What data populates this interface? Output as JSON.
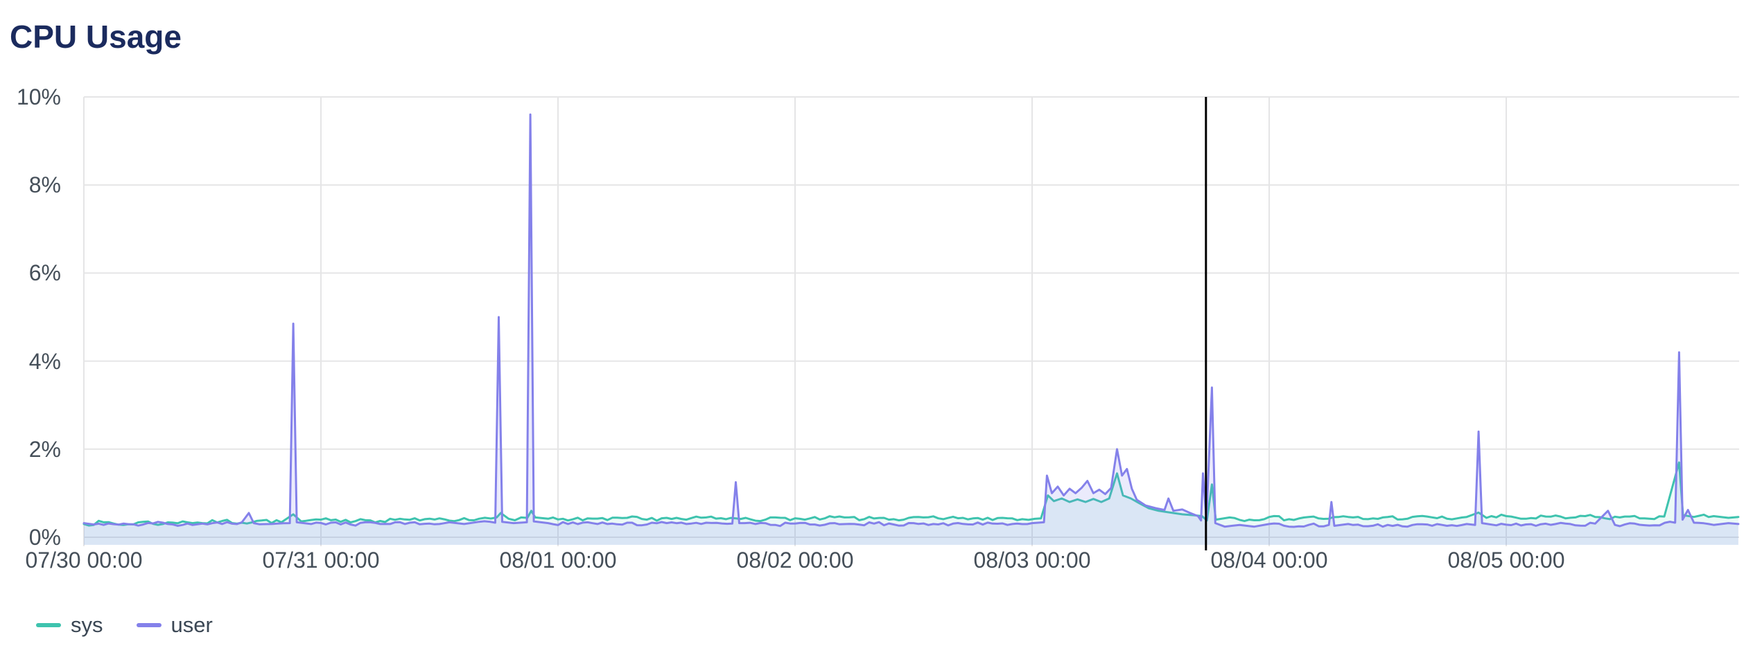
{
  "page": {
    "title": "CPU Usage"
  },
  "colors": {
    "background": "#ffffff",
    "title_text": "#1b2b5e",
    "axis_text": "#454f59",
    "grid": "#e5e5e6",
    "legend_text": "#3b4754",
    "marker": "#000000"
  },
  "chart_data": {
    "type": "area",
    "title": "CPU Usage",
    "xlabel": "",
    "ylabel": "",
    "ylim": [
      0,
      10
    ],
    "grid": true,
    "legend_position": "bottom-left",
    "x_domain_hours": [
      0,
      167.5
    ],
    "x_ticks": [
      {
        "t": 0,
        "label": "07/30 00:00"
      },
      {
        "t": 24,
        "label": "07/31 00:00"
      },
      {
        "t": 48,
        "label": "08/01 00:00"
      },
      {
        "t": 72,
        "label": "08/02 00:00"
      },
      {
        "t": 96,
        "label": "08/03 00:00"
      },
      {
        "t": 120,
        "label": "08/04 00:00"
      },
      {
        "t": 144,
        "label": "08/05 00:00"
      }
    ],
    "y_ticks": [
      {
        "v": 0,
        "label": "0%"
      },
      {
        "v": 2,
        "label": "2%"
      },
      {
        "v": 4,
        "label": "4%"
      },
      {
        "v": 6,
        "label": "6%"
      },
      {
        "v": 8,
        "label": "8%"
      },
      {
        "v": 10,
        "label": "10%"
      }
    ],
    "event_marker": {
      "t_hours": 113.6,
      "color": "#000000"
    },
    "noise": {
      "seed": 7,
      "step_hours": 0.55
    },
    "series": [
      {
        "name": "sys",
        "color": "#3ec3ae",
        "fill": "rgba(62,195,174,0.10)",
        "noise_amp": 0.045,
        "points": [
          [
            0,
            0.3
          ],
          [
            2,
            0.34
          ],
          [
            4,
            0.28
          ],
          [
            6,
            0.35
          ],
          [
            8,
            0.3
          ],
          [
            10,
            0.36
          ],
          [
            12,
            0.32
          ],
          [
            14,
            0.37
          ],
          [
            16,
            0.33
          ],
          [
            18,
            0.38
          ],
          [
            20,
            0.34
          ],
          [
            21.2,
            0.52
          ],
          [
            22,
            0.36
          ],
          [
            24,
            0.4
          ],
          [
            26,
            0.35
          ],
          [
            28,
            0.41
          ],
          [
            30,
            0.37
          ],
          [
            32,
            0.42
          ],
          [
            34,
            0.38
          ],
          [
            36,
            0.43
          ],
          [
            38,
            0.39
          ],
          [
            40,
            0.42
          ],
          [
            41.8,
            0.45
          ],
          [
            42.2,
            0.55
          ],
          [
            43,
            0.42
          ],
          [
            44.9,
            0.44
          ],
          [
            45.3,
            0.6
          ],
          [
            45.7,
            0.45
          ],
          [
            47,
            0.42
          ],
          [
            49,
            0.38
          ],
          [
            51,
            0.43
          ],
          [
            53,
            0.39
          ],
          [
            55,
            0.44
          ],
          [
            57,
            0.4
          ],
          [
            59,
            0.44
          ],
          [
            61,
            0.4
          ],
          [
            63,
            0.45
          ],
          [
            65,
            0.41
          ],
          [
            67,
            0.44
          ],
          [
            69,
            0.4
          ],
          [
            71,
            0.44
          ],
          [
            73,
            0.4
          ],
          [
            75,
            0.43
          ],
          [
            77,
            0.45
          ],
          [
            79,
            0.41
          ],
          [
            81,
            0.44
          ],
          [
            83,
            0.4
          ],
          [
            85,
            0.45
          ],
          [
            87,
            0.41
          ],
          [
            89,
            0.44
          ],
          [
            91,
            0.4
          ],
          [
            93,
            0.44
          ],
          [
            95,
            0.41
          ],
          [
            96.9,
            0.43
          ],
          [
            97.6,
            0.95
          ],
          [
            98.2,
            0.82
          ],
          [
            99,
            0.88
          ],
          [
            99.8,
            0.8
          ],
          [
            100.6,
            0.86
          ],
          [
            101.4,
            0.8
          ],
          [
            102.2,
            0.87
          ],
          [
            103,
            0.8
          ],
          [
            103.8,
            0.88
          ],
          [
            104.6,
            1.45
          ],
          [
            105.2,
            0.95
          ],
          [
            106,
            0.88
          ],
          [
            106.8,
            0.78
          ],
          [
            107.8,
            0.66
          ],
          [
            108.8,
            0.6
          ],
          [
            110,
            0.56
          ],
          [
            111.2,
            0.52
          ],
          [
            112.4,
            0.5
          ],
          [
            113.2,
            0.48
          ],
          [
            113.7,
            0.38
          ],
          [
            114.2,
            1.2
          ],
          [
            114.6,
            0.4
          ],
          [
            116,
            0.45
          ],
          [
            118,
            0.4
          ],
          [
            120,
            0.46
          ],
          [
            122,
            0.41
          ],
          [
            124,
            0.46
          ],
          [
            126,
            0.42
          ],
          [
            128,
            0.46
          ],
          [
            130,
            0.41
          ],
          [
            132,
            0.46
          ],
          [
            134,
            0.42
          ],
          [
            136,
            0.47
          ],
          [
            138,
            0.42
          ],
          [
            140,
            0.46
          ],
          [
            141.2,
            0.56
          ],
          [
            142,
            0.44
          ],
          [
            144,
            0.48
          ],
          [
            146,
            0.42
          ],
          [
            148,
            0.47
          ],
          [
            150,
            0.43
          ],
          [
            152,
            0.48
          ],
          [
            154,
            0.43
          ],
          [
            156,
            0.47
          ],
          [
            158,
            0.43
          ],
          [
            160,
            0.47
          ],
          [
            161.5,
            1.7
          ],
          [
            161.9,
            0.5
          ],
          [
            163,
            0.46
          ],
          [
            165,
            0.48
          ],
          [
            166.5,
            0.44
          ],
          [
            167.5,
            0.46
          ]
        ]
      },
      {
        "name": "user",
        "color": "#8481ea",
        "fill": "rgba(132,129,234,0.16)",
        "noise_amp": 0.038,
        "points": [
          [
            0,
            0.32
          ],
          [
            2,
            0.28
          ],
          [
            4,
            0.31
          ],
          [
            6,
            0.29
          ],
          [
            8,
            0.33
          ],
          [
            10,
            0.28
          ],
          [
            12,
            0.31
          ],
          [
            14,
            0.3
          ],
          [
            16,
            0.34
          ],
          [
            16.7,
            0.55
          ],
          [
            17.2,
            0.32
          ],
          [
            19,
            0.3
          ],
          [
            20.85,
            0.32
          ],
          [
            21.2,
            4.85
          ],
          [
            21.55,
            0.34
          ],
          [
            23,
            0.3
          ],
          [
            25,
            0.33
          ],
          [
            27,
            0.29
          ],
          [
            29,
            0.34
          ],
          [
            31,
            0.3
          ],
          [
            33,
            0.33
          ],
          [
            35,
            0.31
          ],
          [
            37,
            0.34
          ],
          [
            38.5,
            0.3
          ],
          [
            40,
            0.35
          ],
          [
            41.65,
            0.33
          ],
          [
            42,
            5.0
          ],
          [
            42.35,
            0.35
          ],
          [
            43.5,
            0.32
          ],
          [
            44.85,
            0.34
          ],
          [
            45.2,
            9.6
          ],
          [
            45.55,
            0.36
          ],
          [
            47,
            0.32
          ],
          [
            49,
            0.3
          ],
          [
            51,
            0.34
          ],
          [
            53,
            0.3
          ],
          [
            55,
            0.33
          ],
          [
            57,
            0.29
          ],
          [
            59,
            0.32
          ],
          [
            61,
            0.3
          ],
          [
            63,
            0.33
          ],
          [
            65.65,
            0.31
          ],
          [
            66,
            1.25
          ],
          [
            66.35,
            0.32
          ],
          [
            68,
            0.3
          ],
          [
            70,
            0.28
          ],
          [
            72,
            0.31
          ],
          [
            74,
            0.29
          ],
          [
            76,
            0.32
          ],
          [
            78,
            0.3
          ],
          [
            80,
            0.31
          ],
          [
            82,
            0.29
          ],
          [
            84,
            0.32
          ],
          [
            86,
            0.3
          ],
          [
            88,
            0.31
          ],
          [
            90,
            0.29
          ],
          [
            92,
            0.31
          ],
          [
            94,
            0.3
          ],
          [
            96,
            0.32
          ],
          [
            97.2,
            0.34
          ],
          [
            97.5,
            1.4
          ],
          [
            98,
            1.0
          ],
          [
            98.6,
            1.15
          ],
          [
            99.2,
            0.95
          ],
          [
            99.8,
            1.1
          ],
          [
            100.4,
            1.0
          ],
          [
            101,
            1.12
          ],
          [
            101.6,
            1.28
          ],
          [
            102.2,
            1.0
          ],
          [
            102.8,
            1.08
          ],
          [
            103.4,
            0.98
          ],
          [
            104,
            1.12
          ],
          [
            104.6,
            2.0
          ],
          [
            105.1,
            1.4
          ],
          [
            105.6,
            1.55
          ],
          [
            106.1,
            1.1
          ],
          [
            106.6,
            0.85
          ],
          [
            107.5,
            0.72
          ],
          [
            108.5,
            0.66
          ],
          [
            109.4,
            0.62
          ],
          [
            109.8,
            0.88
          ],
          [
            110.3,
            0.6
          ],
          [
            111.2,
            0.63
          ],
          [
            112,
            0.55
          ],
          [
            112.8,
            0.48
          ],
          [
            113.1,
            0.38
          ],
          [
            113.3,
            1.45
          ],
          [
            113.65,
            0.4
          ],
          [
            114.2,
            3.4
          ],
          [
            114.55,
            0.32
          ],
          [
            115.5,
            0.24
          ],
          [
            117,
            0.28
          ],
          [
            118.5,
            0.24
          ],
          [
            120,
            0.3
          ],
          [
            122,
            0.24
          ],
          [
            124,
            0.28
          ],
          [
            126.05,
            0.28
          ],
          [
            126.3,
            0.8
          ],
          [
            126.6,
            0.26
          ],
          [
            128,
            0.3
          ],
          [
            130,
            0.25
          ],
          [
            132,
            0.28
          ],
          [
            134,
            0.24
          ],
          [
            136,
            0.29
          ],
          [
            138,
            0.26
          ],
          [
            140,
            0.3
          ],
          [
            140.85,
            0.28
          ],
          [
            141.2,
            2.4
          ],
          [
            141.55,
            0.32
          ],
          [
            143,
            0.27
          ],
          [
            145,
            0.31
          ],
          [
            147,
            0.26
          ],
          [
            149,
            0.3
          ],
          [
            151,
            0.27
          ],
          [
            153,
            0.31
          ],
          [
            154.3,
            0.6
          ],
          [
            155,
            0.28
          ],
          [
            157,
            0.31
          ],
          [
            159,
            0.27
          ],
          [
            161.1,
            0.33
          ],
          [
            161.5,
            4.2
          ],
          [
            161.85,
            0.4
          ],
          [
            162.4,
            0.62
          ],
          [
            163,
            0.33
          ],
          [
            165,
            0.28
          ],
          [
            166.5,
            0.32
          ],
          [
            167.5,
            0.3
          ]
        ]
      }
    ]
  }
}
